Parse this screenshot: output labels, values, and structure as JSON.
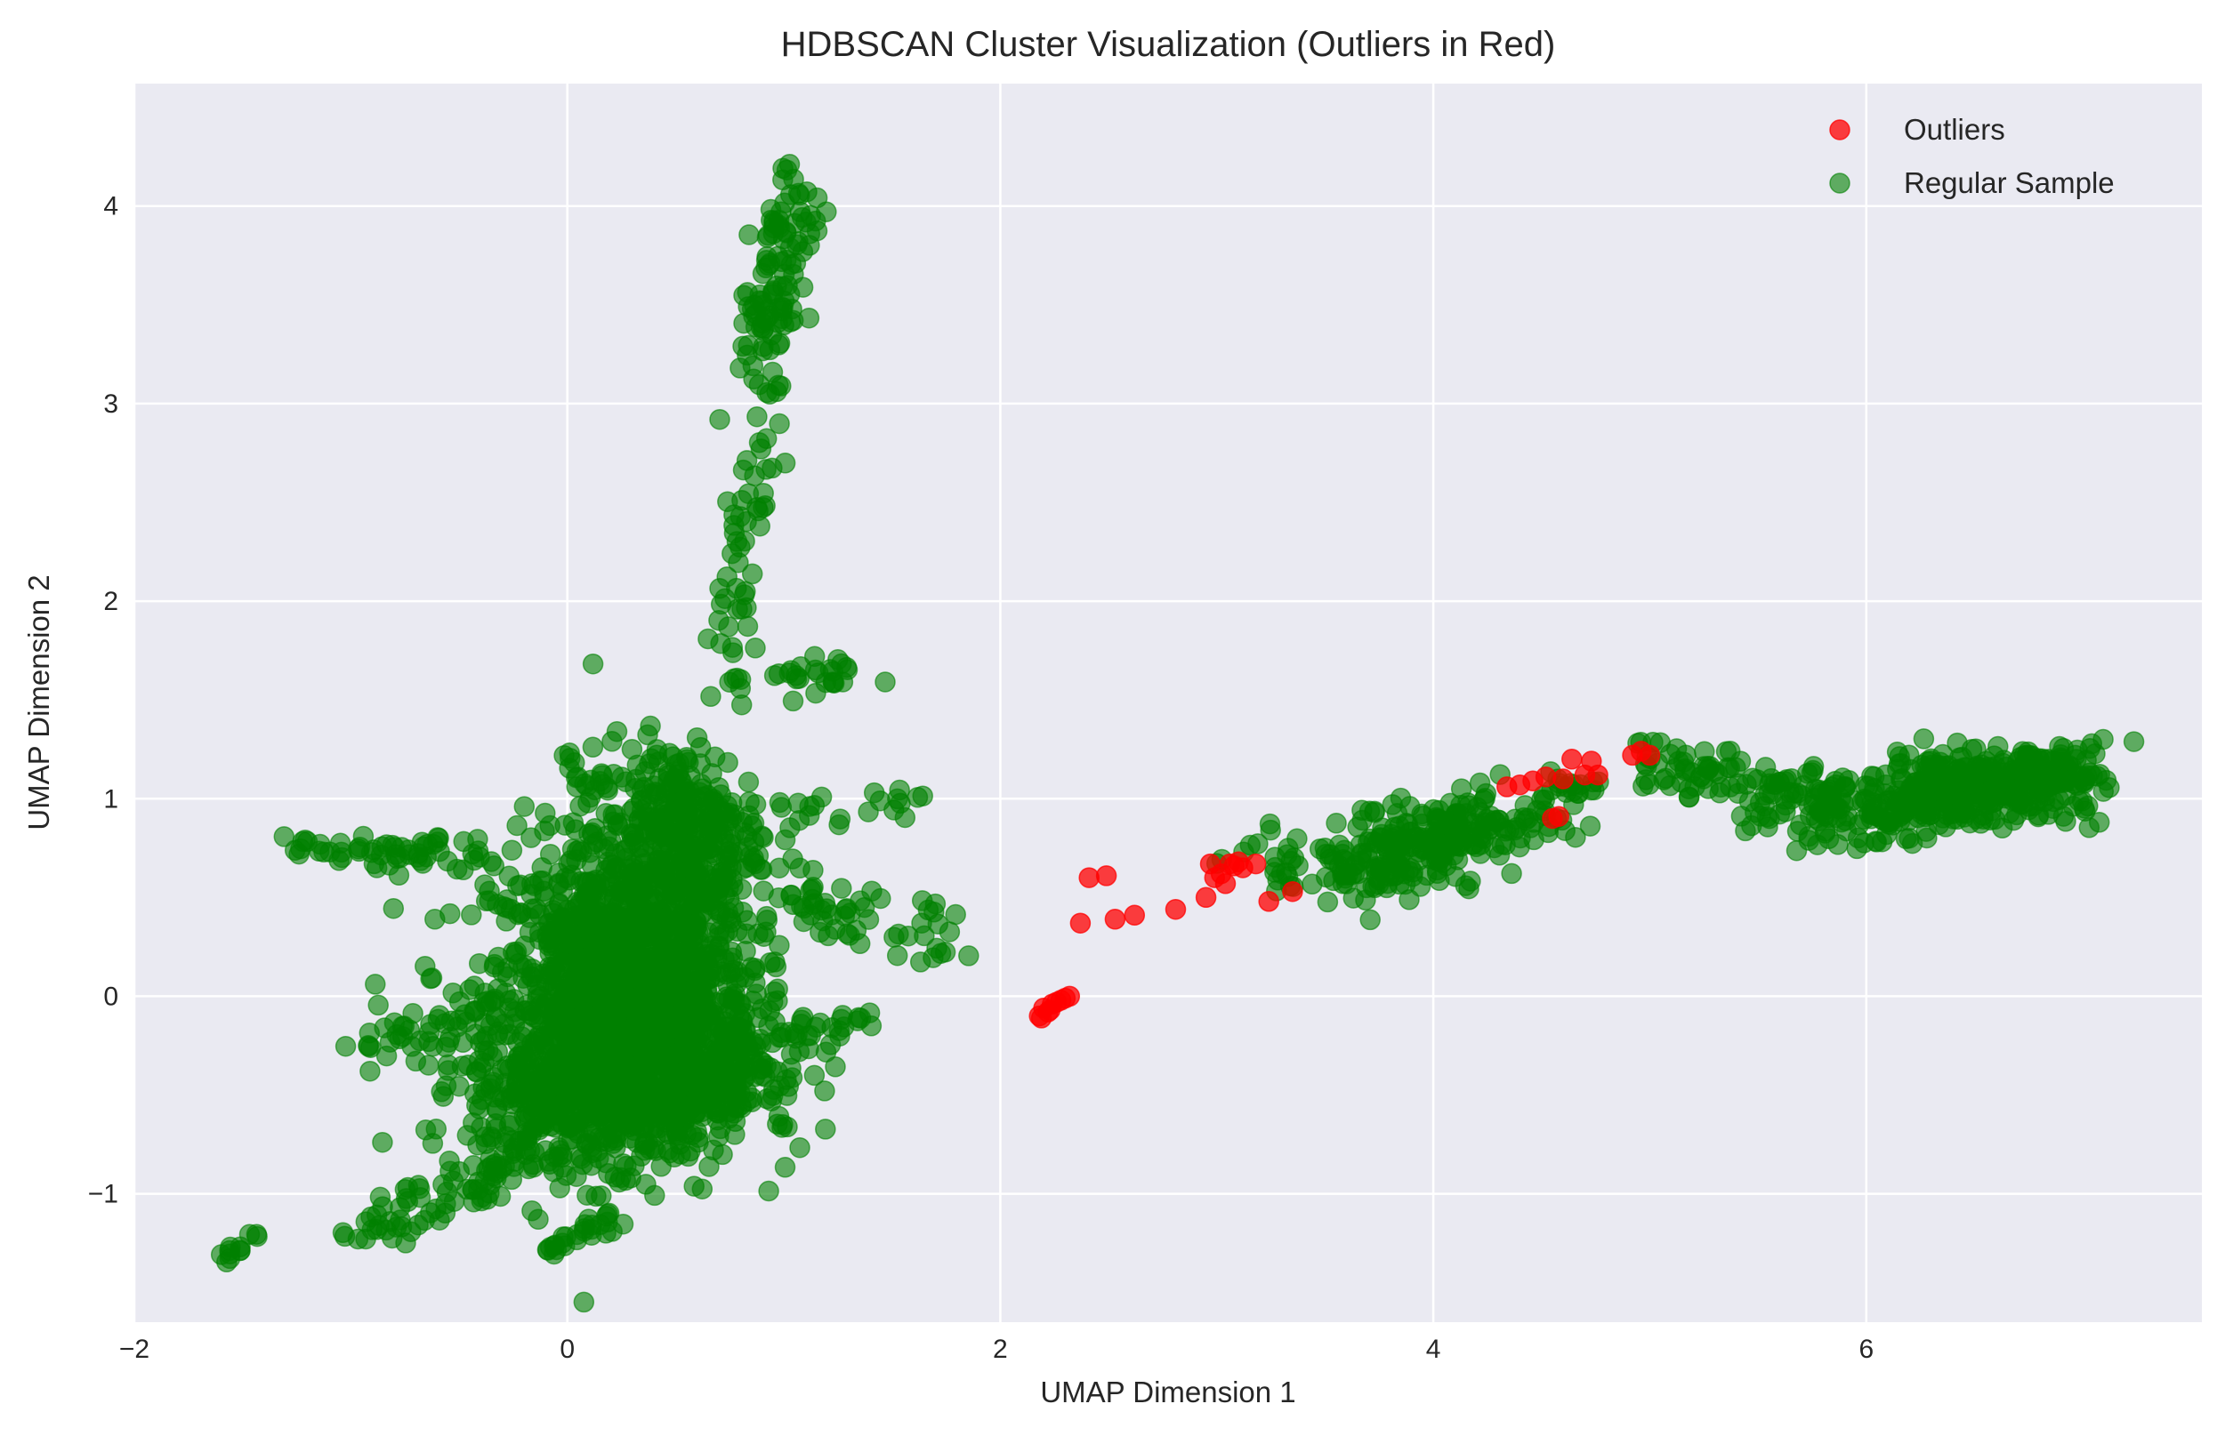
{
  "chart_data": {
    "type": "scatter",
    "title": "HDBSCAN Cluster Visualization (Outliers in Red)",
    "xlabel": "UMAP Dimension 1",
    "ylabel": "UMAP Dimension 2",
    "xlim": [
      -2.0,
      7.55
    ],
    "ylim": [
      -1.65,
      4.62
    ],
    "xticks": [
      -2,
      0,
      2,
      4,
      6
    ],
    "xtick_labels": [
      "−2",
      "0",
      "2",
      "4",
      "6"
    ],
    "yticks": [
      -1,
      0,
      1,
      2,
      3,
      4
    ],
    "ytick_labels": [
      "−1",
      "0",
      "1",
      "2",
      "3",
      "4"
    ],
    "grid": true,
    "legend_position": "top-right",
    "background": "#eaeaf2",
    "series": [
      {
        "name": "Outliers",
        "color": "#ff0000",
        "points": [
          [
            2.18,
            -0.1
          ],
          [
            2.2,
            -0.06
          ],
          [
            2.22,
            -0.08
          ],
          [
            2.24,
            -0.04
          ],
          [
            2.26,
            -0.03
          ],
          [
            2.28,
            -0.02
          ],
          [
            2.3,
            -0.01
          ],
          [
            2.32,
            0.0
          ],
          [
            2.19,
            -0.11
          ],
          [
            2.23,
            -0.07
          ],
          [
            2.37,
            0.37
          ],
          [
            2.41,
            0.6
          ],
          [
            2.49,
            0.61
          ],
          [
            2.53,
            0.39
          ],
          [
            2.62,
            0.41
          ],
          [
            2.81,
            0.44
          ],
          [
            2.95,
            0.5
          ],
          [
            2.97,
            0.67
          ],
          [
            2.99,
            0.6
          ],
          [
            3.02,
            0.62
          ],
          [
            3.04,
            0.57
          ],
          [
            3.06,
            0.67
          ],
          [
            3.08,
            0.66
          ],
          [
            3.1,
            0.68
          ],
          [
            3.12,
            0.65
          ],
          [
            3.18,
            0.67
          ],
          [
            3.24,
            0.48
          ],
          [
            3.35,
            0.53
          ],
          [
            4.34,
            1.06
          ],
          [
            4.4,
            1.07
          ],
          [
            4.46,
            1.09
          ],
          [
            4.52,
            1.11
          ],
          [
            4.55,
            0.9
          ],
          [
            4.58,
            0.91
          ],
          [
            4.6,
            1.1
          ],
          [
            4.64,
            1.2
          ],
          [
            4.7,
            1.12
          ],
          [
            4.73,
            1.19
          ],
          [
            4.76,
            1.12
          ],
          [
            4.92,
            1.22
          ],
          [
            4.96,
            1.24
          ],
          [
            5.0,
            1.22
          ]
        ]
      },
      {
        "name": "Regular Sample",
        "color": "#008000",
        "clusters": [
          {
            "cx": 0.25,
            "cy": 0.0,
            "sx": 0.55,
            "sy": 0.7,
            "n": 1400
          },
          {
            "cx": 0.15,
            "cy": -0.45,
            "sx": 0.55,
            "sy": 0.35,
            "n": 500
          },
          {
            "cx": 0.5,
            "cy": 0.8,
            "sx": 0.35,
            "sy": 0.45,
            "n": 350
          },
          {
            "cx": 0.6,
            "cy": -0.3,
            "sx": 0.45,
            "sy": 0.4,
            "n": 250
          }
        ],
        "strands": [
          {
            "from": [
              -1.22,
              0.75
            ],
            "to": [
              -0.3,
              0.7
            ],
            "n": 60,
            "jitter": 0.05
          },
          {
            "from": [
              -0.95,
              -0.25
            ],
            "to": [
              -0.2,
              -0.1
            ],
            "n": 40,
            "jitter": 0.06
          },
          {
            "from": [
              -0.95,
              -1.2
            ],
            "to": [
              -0.1,
              -0.75
            ],
            "n": 80,
            "jitter": 0.07
          },
          {
            "from": [
              -1.6,
              -1.35
            ],
            "to": [
              -1.45,
              -1.22
            ],
            "n": 12,
            "jitter": 0.02
          },
          {
            "from": [
              0.0,
              1.22
            ],
            "to": [
              0.1,
              1.05
            ],
            "n": 12,
            "jitter": 0.03
          },
          {
            "from": [
              0.75,
              1.5
            ],
            "to": [
              1.0,
              4.33
            ],
            "n": 110,
            "jitter": 0.06
          },
          {
            "from": [
              0.9,
              3.3
            ],
            "to": [
              1.1,
              4.05
            ],
            "n": 60,
            "jitter": 0.07
          },
          {
            "from": [
              1.0,
              1.6
            ],
            "to": [
              1.35,
              1.7
            ],
            "n": 25,
            "jitter": 0.05
          },
          {
            "from": [
              1.0,
              0.5
            ],
            "to": [
              1.8,
              0.27
            ],
            "n": 55,
            "jitter": 0.07
          },
          {
            "from": [
              1.0,
              0.9
            ],
            "to": [
              1.6,
              1.0
            ],
            "n": 20,
            "jitter": 0.05
          },
          {
            "from": [
              1.0,
              -0.2
            ],
            "to": [
              1.4,
              -0.1
            ],
            "n": 20,
            "jitter": 0.05
          },
          {
            "from": [
              -0.1,
              -1.28
            ],
            "to": [
              0.2,
              -1.15
            ],
            "n": 25,
            "jitter": 0.04
          },
          {
            "from": [
              3.2,
              0.65
            ],
            "to": [
              4.65,
              0.95
            ],
            "n": 140,
            "jitter": 0.08
          },
          {
            "from": [
              3.6,
              0.6
            ],
            "to": [
              4.2,
              0.85
            ],
            "n": 160,
            "jitter": 0.1
          },
          {
            "from": [
              4.9,
              1.2
            ],
            "to": [
              5.6,
              1.05
            ],
            "n": 60,
            "jitter": 0.06
          },
          {
            "from": [
              5.4,
              0.9
            ],
            "to": [
              5.8,
              1.12
            ],
            "n": 30,
            "jitter": 0.05
          },
          {
            "from": [
              5.7,
              0.9
            ],
            "to": [
              7.1,
              1.1
            ],
            "n": 300,
            "jitter": 0.09
          },
          {
            "from": [
              6.2,
              1.05
            ],
            "to": [
              6.95,
              1.15
            ],
            "n": 220,
            "jitter": 0.08
          },
          {
            "from": [
              4.55,
              1.1
            ],
            "to": [
              4.78,
              1.02
            ],
            "n": 12,
            "jitter": 0.03
          }
        ]
      }
    ]
  }
}
